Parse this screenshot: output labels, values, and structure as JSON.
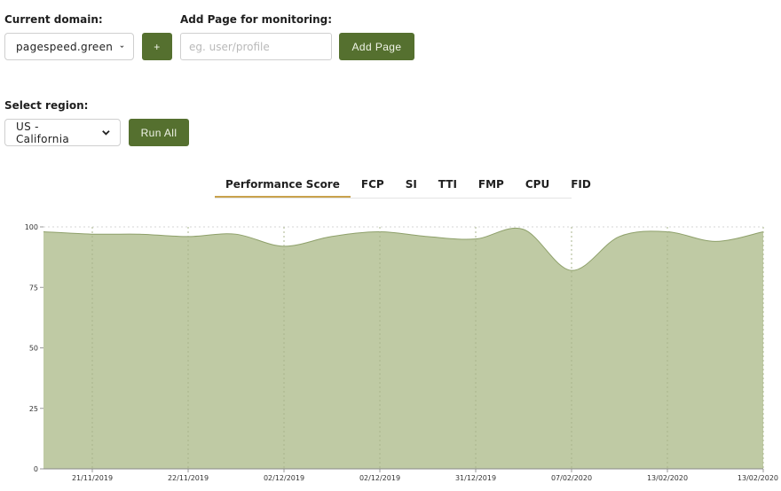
{
  "domain_section": {
    "label": "Current domain:",
    "selected": "pagespeed.green",
    "add_button_label": "+"
  },
  "add_page_section": {
    "label": "Add Page for monitoring:",
    "placeholder": "eg. user/profile",
    "value": "",
    "button_label": "Add Page"
  },
  "region_section": {
    "label": "Select region:",
    "selected": "US - California",
    "run_all_label": "Run All"
  },
  "tabs": [
    {
      "label": "Performance Score",
      "active": true
    },
    {
      "label": "FCP",
      "active": false
    },
    {
      "label": "SI",
      "active": false
    },
    {
      "label": "TTI",
      "active": false
    },
    {
      "label": "FMP",
      "active": false
    },
    {
      "label": "CPU",
      "active": false
    },
    {
      "label": "FID",
      "active": false
    }
  ],
  "colors": {
    "accent": "#55702f",
    "area_fill": "#bfcaa4",
    "area_stroke": "#8ea06a",
    "tab_underline": "#c9a24d"
  },
  "chart_data": {
    "type": "area",
    "title": "",
    "xlabel": "",
    "ylabel": "",
    "ylim": [
      0,
      100
    ],
    "yticks": [
      0,
      25,
      50,
      75,
      100
    ],
    "x_tick_labels": [
      "21/11/2019",
      "22/11/2019",
      "02/12/2019",
      "02/12/2019",
      "31/12/2019",
      "07/02/2020",
      "13/02/2020",
      "13/02/2020"
    ],
    "grid": true,
    "series": [
      {
        "values": [
          98,
          97,
          97,
          96,
          97,
          92,
          96,
          98,
          96,
          95,
          99,
          82,
          96,
          98,
          94,
          98
        ]
      }
    ]
  }
}
